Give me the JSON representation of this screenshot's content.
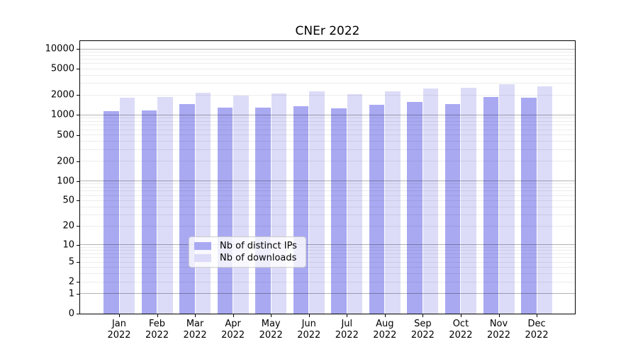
{
  "figure": {
    "title": "CNEr 2022"
  },
  "chart_data": {
    "type": "bar",
    "title": "CNEr 2022",
    "year_label": "2022",
    "categories": [
      "Jan",
      "Feb",
      "Mar",
      "Apr",
      "May",
      "Jun",
      "Jul",
      "Aug",
      "Sep",
      "Oct",
      "Nov",
      "Dec"
    ],
    "series": [
      {
        "name": "Nb of distinct IPs",
        "color": "#a9a9f2",
        "values": [
          1140,
          1170,
          1460,
          1300,
          1300,
          1360,
          1260,
          1430,
          1580,
          1470,
          1870,
          1830
        ]
      },
      {
        "name": "Nb of downloads",
        "color": "#dcdcf8",
        "values": [
          1830,
          1870,
          2170,
          1980,
          2120,
          2280,
          2070,
          2280,
          2520,
          2550,
          2950,
          2720
        ]
      }
    ],
    "yscale": "log10(1+y)",
    "ylim": [
      0,
      10000
    ],
    "yticks": [
      0,
      1,
      2,
      5,
      10,
      20,
      50,
      100,
      200,
      500,
      1000,
      2000,
      5000,
      10000
    ],
    "grid": "on",
    "gridline_major_values": [
      1,
      10,
      100,
      1000,
      10000
    ],
    "legend_position": "lower-center-inside",
    "xlabel": "",
    "ylabel": ""
  }
}
